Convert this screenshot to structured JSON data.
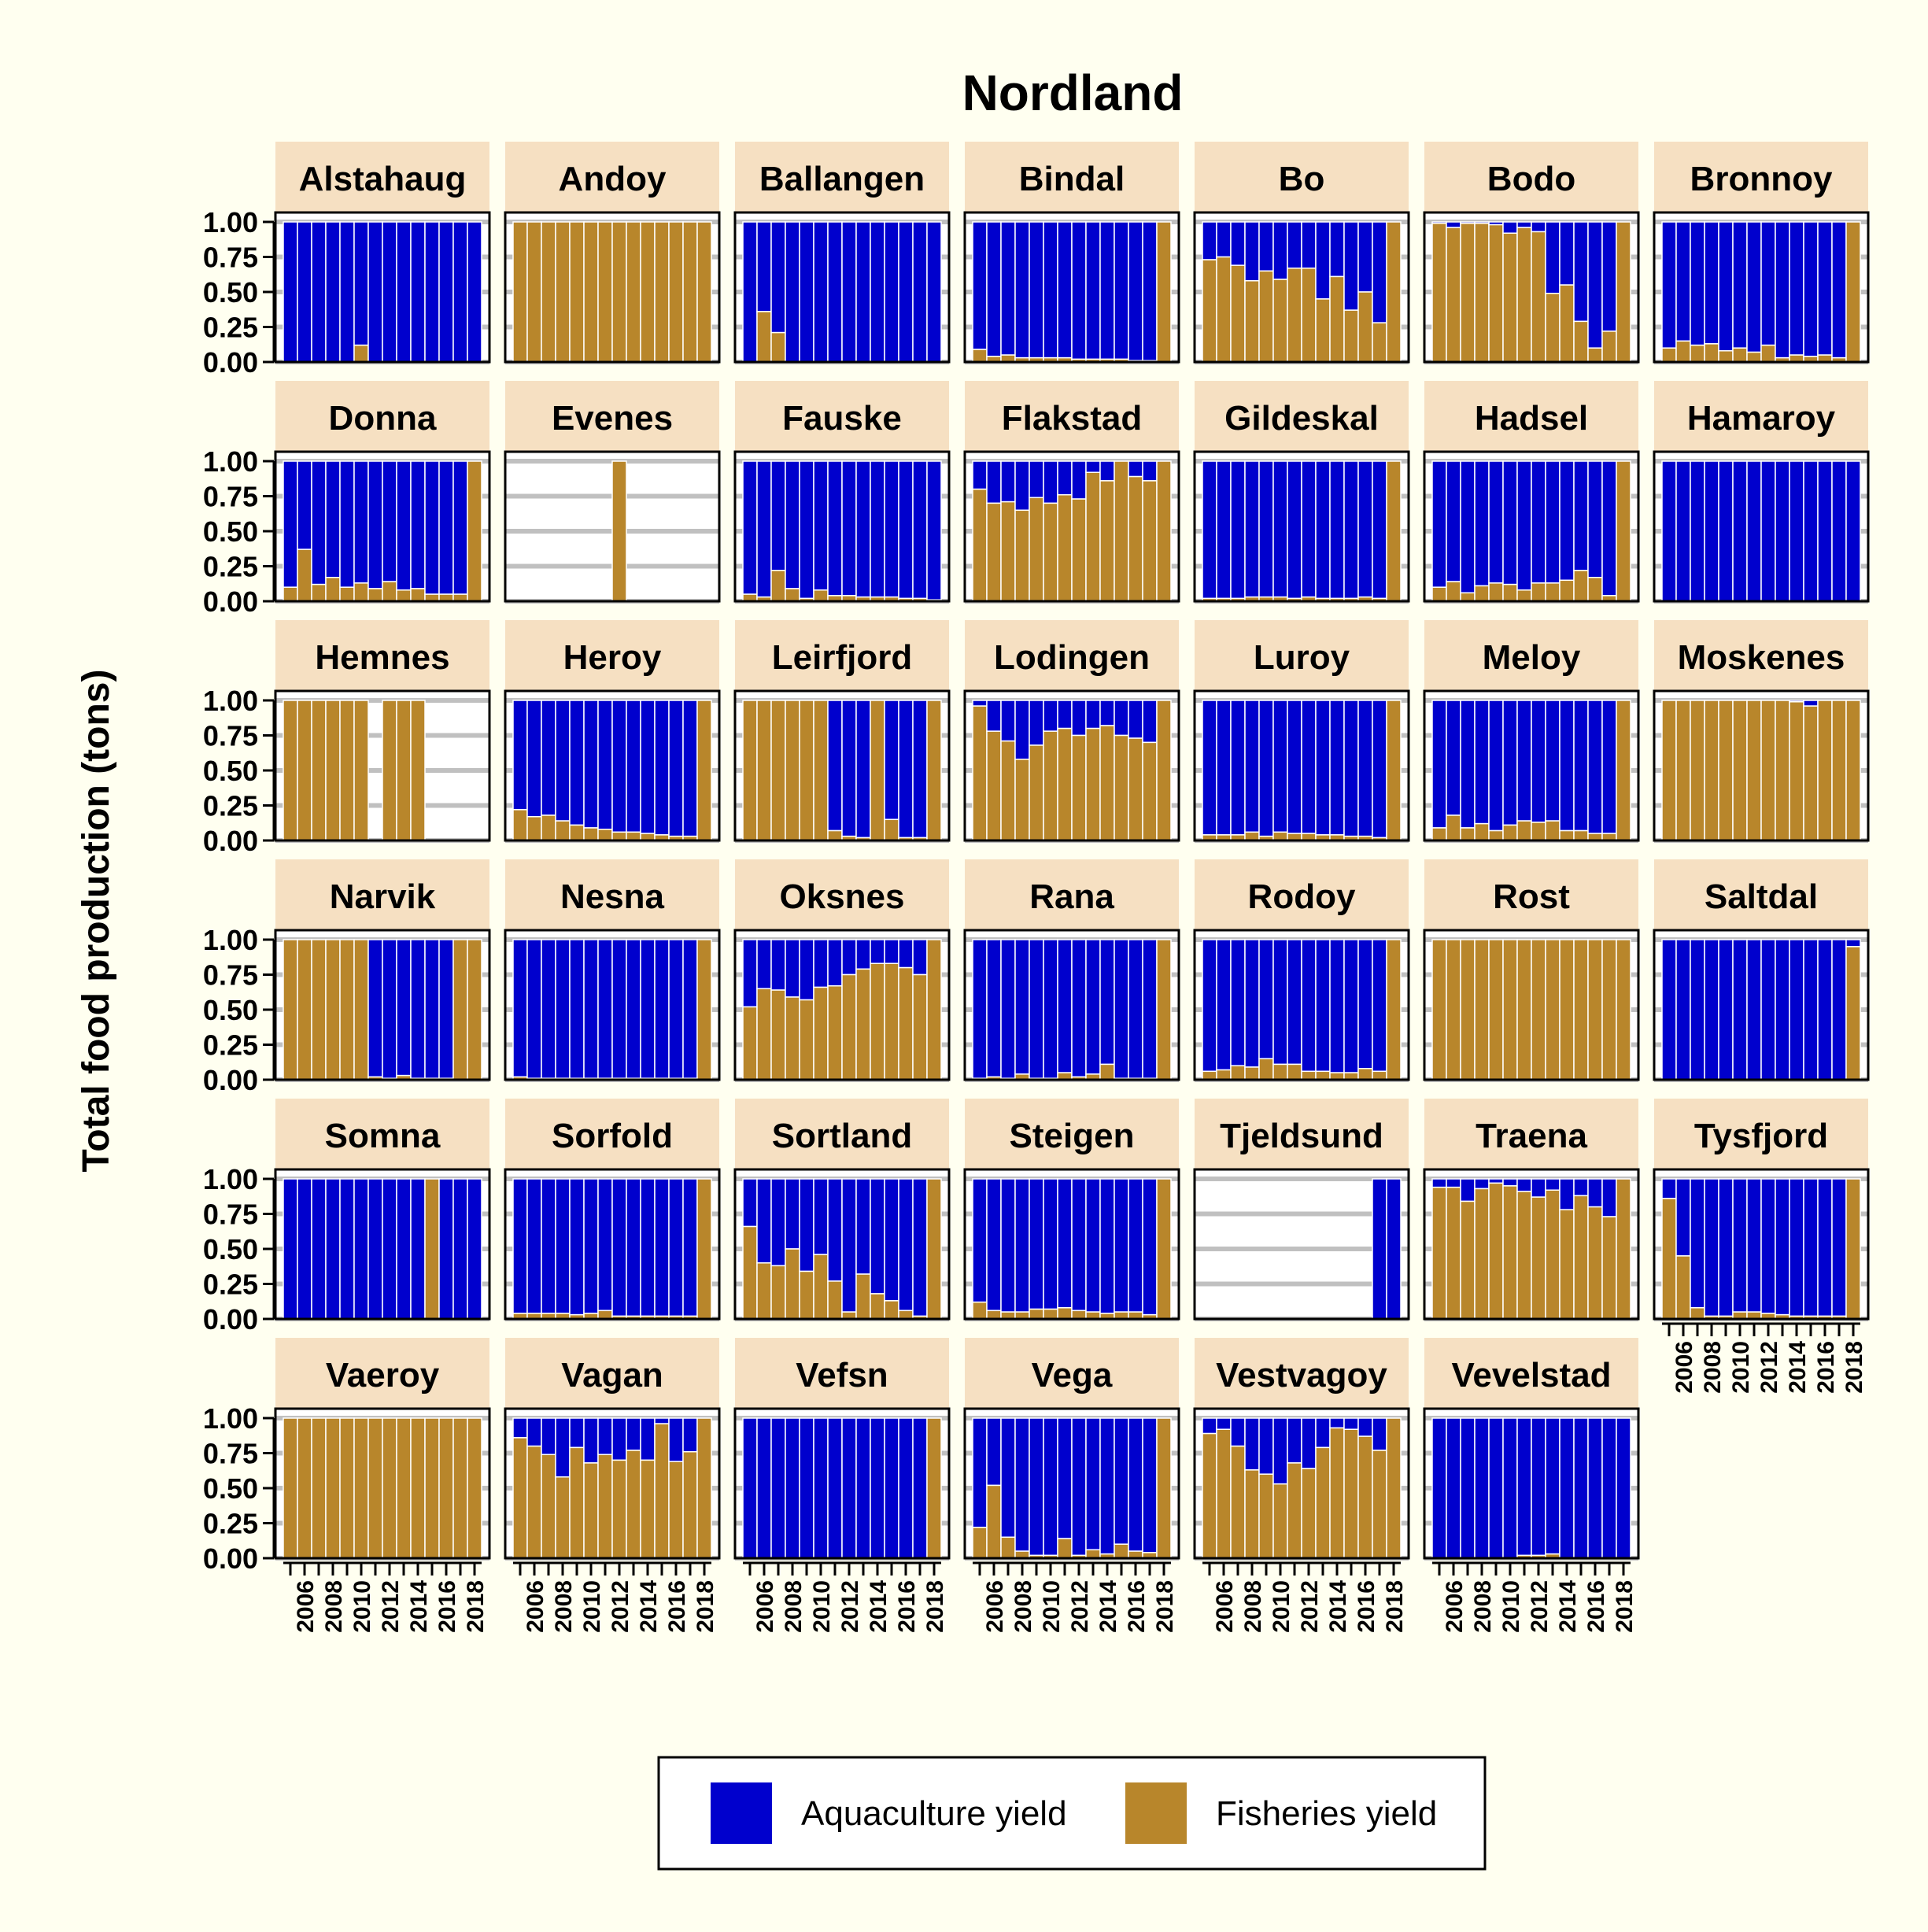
{
  "chart_data": {
    "type": "bar",
    "layout": "faceted stacked proportion bars",
    "title": "Nordland",
    "ylabel": "Total food production (tons)",
    "xlabel": "",
    "ylim": [
      0,
      1
    ],
    "y_ticks": [
      "0.00",
      "0.25",
      "0.50",
      "0.75",
      "1.00"
    ],
    "x_years": [
      2005,
      2006,
      2007,
      2008,
      2009,
      2010,
      2011,
      2012,
      2013,
      2014,
      2015,
      2016,
      2017,
      2018
    ],
    "x_tick_labels": [
      "2006",
      "2008",
      "2010",
      "2012",
      "2014",
      "2016",
      "2018"
    ],
    "series": [
      {
        "name": "Aquaculture yield",
        "color": "#0000cd"
      },
      {
        "name": "Fisheries yield",
        "color": "#b8862b"
      }
    ],
    "legend": {
      "labels": [
        "Aquaculture yield",
        "Fisheries yield"
      ],
      "placement": "bottom"
    },
    "colors": {
      "background": "#fffff0",
      "strip": "#f6e0c2",
      "grid": "#c0c0c0",
      "aquaculture": "#0000cd",
      "fisheries": "#b8862b"
    },
    "note": "Per panel, 'fisheries' is the fisheries share of each year's total production (years 2005-2018); aquaculture share = 1 - fisheries; null = no data for that year.",
    "panels": [
      {
        "name": "Alstahaug",
        "fisheries": [
          0,
          0,
          0,
          0,
          0,
          0.12,
          0,
          0,
          0,
          0,
          0,
          0,
          0,
          0
        ]
      },
      {
        "name": "Andoy",
        "fisheries": [
          1,
          1,
          1,
          1,
          1,
          1,
          1,
          1,
          1,
          1,
          1,
          1,
          1,
          1
        ]
      },
      {
        "name": "Ballangen",
        "fisheries": [
          0,
          0.36,
          0.21,
          0,
          0,
          0,
          0,
          0,
          0,
          0,
          0,
          0,
          0,
          0
        ]
      },
      {
        "name": "Bindal",
        "fisheries": [
          0.09,
          0.04,
          0.05,
          0.03,
          0.03,
          0.03,
          0.03,
          0.02,
          0.02,
          0.02,
          0.02,
          0.01,
          0.01,
          1
        ]
      },
      {
        "name": "Bo",
        "fisheries": [
          0.73,
          0.75,
          0.69,
          0.58,
          0.65,
          0.59,
          0.67,
          0.67,
          0.45,
          0.61,
          0.37,
          0.5,
          0.28,
          1
        ]
      },
      {
        "name": "Bodo",
        "fisheries": [
          0.99,
          0.96,
          0.99,
          0.99,
          0.98,
          0.92,
          0.96,
          0.93,
          0.49,
          0.55,
          0.29,
          0.1,
          0.22,
          1
        ]
      },
      {
        "name": "Bronnoy",
        "fisheries": [
          0.1,
          0.15,
          0.12,
          0.13,
          0.08,
          0.1,
          0.07,
          0.12,
          0.03,
          0.05,
          0.04,
          0.05,
          0.03,
          1
        ]
      },
      {
        "name": "Donna",
        "fisheries": [
          0.1,
          0.37,
          0.12,
          0.17,
          0.1,
          0.13,
          0.09,
          0.14,
          0.08,
          0.09,
          0.05,
          0.05,
          0.05,
          1
        ]
      },
      {
        "name": "Evenes",
        "fisheries": [
          null,
          null,
          null,
          null,
          null,
          null,
          null,
          1,
          null,
          null,
          null,
          null,
          null,
          null
        ]
      },
      {
        "name": "Fauske",
        "fisheries": [
          0.05,
          0.03,
          0.22,
          0.09,
          0.02,
          0.08,
          0.04,
          0.04,
          0.03,
          0.03,
          0.03,
          0.02,
          0.02,
          0.01
        ]
      },
      {
        "name": "Flakstad",
        "fisheries": [
          0.8,
          0.7,
          0.71,
          0.65,
          0.74,
          0.7,
          0.76,
          0.73,
          0.92,
          0.86,
          1,
          0.89,
          0.86,
          1
        ]
      },
      {
        "name": "Gildeskal",
        "fisheries": [
          0.02,
          0.02,
          0.02,
          0.03,
          0.03,
          0.03,
          0.02,
          0.03,
          0.02,
          0.02,
          0.02,
          0.03,
          0.02,
          1
        ]
      },
      {
        "name": "Hadsel",
        "fisheries": [
          0.1,
          0.14,
          0.06,
          0.11,
          0.13,
          0.12,
          0.08,
          0.13,
          0.13,
          0.15,
          0.22,
          0.17,
          0.04,
          1
        ]
      },
      {
        "name": "Hamaroy",
        "fisheries": [
          0,
          0,
          0,
          0,
          0,
          0,
          0,
          0,
          0,
          0,
          0,
          0,
          0,
          0
        ]
      },
      {
        "name": "Hemnes",
        "fisheries": [
          1,
          1,
          1,
          1,
          1,
          1,
          null,
          1,
          1,
          1,
          null,
          null,
          null,
          null
        ]
      },
      {
        "name": "Heroy",
        "fisheries": [
          0.22,
          0.17,
          0.18,
          0.14,
          0.11,
          0.09,
          0.08,
          0.06,
          0.06,
          0.05,
          0.04,
          0.03,
          0.03,
          1
        ]
      },
      {
        "name": "Leirfjord",
        "fisheries": [
          1,
          1,
          1,
          1,
          1,
          1,
          0.07,
          0.03,
          0.02,
          1,
          0.15,
          0.02,
          0.02,
          1
        ]
      },
      {
        "name": "Lodingen",
        "fisheries": [
          0.96,
          0.78,
          0.71,
          0.58,
          0.68,
          0.78,
          0.8,
          0.75,
          0.8,
          0.82,
          0.75,
          0.73,
          0.7,
          1
        ]
      },
      {
        "name": "Luroy",
        "fisheries": [
          0.04,
          0.04,
          0.04,
          0.06,
          0.03,
          0.06,
          0.05,
          0.05,
          0.04,
          0.04,
          0.03,
          0.03,
          0.02,
          1
        ]
      },
      {
        "name": "Meloy",
        "fisheries": [
          0.09,
          0.18,
          0.09,
          0.12,
          0.07,
          0.11,
          0.14,
          0.13,
          0.14,
          0.07,
          0.07,
          0.05,
          0.05,
          1
        ]
      },
      {
        "name": "Moskenes",
        "fisheries": [
          1,
          1,
          1,
          1,
          1,
          1,
          1,
          1,
          1,
          0.99,
          0.96,
          1,
          1,
          1
        ]
      },
      {
        "name": "Narvik",
        "fisheries": [
          1,
          1,
          1,
          1,
          1,
          1,
          0.02,
          0.01,
          0.03,
          0.01,
          0.01,
          0.01,
          1,
          1
        ]
      },
      {
        "name": "Nesna",
        "fisheries": [
          0.02,
          0.01,
          0.01,
          0.01,
          0.01,
          0.01,
          0.01,
          0.01,
          0.01,
          0.01,
          0.01,
          0.01,
          0.01,
          1
        ]
      },
      {
        "name": "Oksnes",
        "fisheries": [
          0.52,
          0.65,
          0.64,
          0.59,
          0.57,
          0.66,
          0.67,
          0.75,
          0.79,
          0.83,
          0.83,
          0.8,
          0.75,
          1
        ]
      },
      {
        "name": "Rana",
        "fisheries": [
          0.01,
          0.02,
          0.01,
          0.04,
          0.01,
          0.01,
          0.05,
          0.02,
          0.04,
          0.11,
          0.01,
          0.01,
          0.01,
          1
        ]
      },
      {
        "name": "Rodoy",
        "fisheries": [
          0.06,
          0.07,
          0.1,
          0.09,
          0.15,
          0.11,
          0.11,
          0.06,
          0.06,
          0.05,
          0.05,
          0.08,
          0.06,
          1
        ]
      },
      {
        "name": "Rost",
        "fisheries": [
          1,
          1,
          1,
          1,
          1,
          1,
          1,
          1,
          1,
          1,
          1,
          1,
          1,
          1
        ]
      },
      {
        "name": "Saltdal",
        "fisheries": [
          0,
          0,
          0,
          0,
          0,
          0,
          0,
          0,
          0,
          0,
          0,
          0,
          0,
          0.95
        ]
      },
      {
        "name": "Somna",
        "fisheries": [
          0,
          0,
          0,
          0,
          0,
          0,
          0,
          0,
          0,
          0,
          1,
          0,
          0,
          0
        ]
      },
      {
        "name": "Sorfold",
        "fisheries": [
          0.04,
          0.04,
          0.04,
          0.04,
          0.03,
          0.04,
          0.06,
          0.02,
          0.02,
          0.02,
          0.02,
          0.02,
          0.02,
          1
        ]
      },
      {
        "name": "Sortland",
        "fisheries": [
          0.66,
          0.4,
          0.38,
          0.5,
          0.34,
          0.46,
          0.27,
          0.05,
          0.32,
          0.18,
          0.13,
          0.06,
          0.02,
          1
        ]
      },
      {
        "name": "Steigen",
        "fisheries": [
          0.12,
          0.06,
          0.05,
          0.05,
          0.07,
          0.07,
          0.08,
          0.06,
          0.05,
          0.04,
          0.05,
          0.05,
          0.03,
          1
        ]
      },
      {
        "name": "Tjeldsund",
        "fisheries": [
          null,
          null,
          null,
          null,
          null,
          null,
          null,
          null,
          null,
          null,
          null,
          null,
          0,
          0
        ]
      },
      {
        "name": "Traena",
        "fisheries": [
          0.94,
          0.94,
          0.84,
          0.93,
          0.97,
          0.95,
          0.91,
          0.87,
          0.92,
          0.78,
          0.88,
          0.8,
          0.73,
          1
        ]
      },
      {
        "name": "Tysfjord",
        "fisheries": [
          0.86,
          0.45,
          0.08,
          0.02,
          0.02,
          0.05,
          0.05,
          0.04,
          0.03,
          0.02,
          0.02,
          0.02,
          0.02,
          1
        ]
      },
      {
        "name": "Vaeroy",
        "fisheries": [
          1,
          1,
          1,
          1,
          1,
          1,
          1,
          1,
          1,
          1,
          1,
          1,
          1,
          1
        ]
      },
      {
        "name": "Vagan",
        "fisheries": [
          0.86,
          0.8,
          0.74,
          0.58,
          0.79,
          0.68,
          0.74,
          0.7,
          0.77,
          0.7,
          0.96,
          0.69,
          0.76,
          1
        ]
      },
      {
        "name": "Vefsn",
        "fisheries": [
          0,
          0,
          0,
          0,
          0,
          0,
          0,
          0,
          0,
          0,
          0,
          0,
          0,
          1
        ]
      },
      {
        "name": "Vega",
        "fisheries": [
          0.22,
          0.52,
          0.15,
          0.05,
          0.02,
          0.02,
          0.14,
          0.02,
          0.06,
          0.03,
          0.1,
          0.05,
          0.04,
          1
        ]
      },
      {
        "name": "Vestvagoy",
        "fisheries": [
          0.89,
          0.92,
          0.8,
          0.63,
          0.6,
          0.53,
          0.68,
          0.64,
          0.79,
          0.93,
          0.92,
          0.87,
          0.77,
          1
        ]
      },
      {
        "name": "Vevelstad",
        "fisheries": [
          0,
          0,
          0,
          0,
          0,
          0,
          0.02,
          0.02,
          0.03,
          0,
          0,
          0,
          0,
          0
        ]
      }
    ]
  }
}
